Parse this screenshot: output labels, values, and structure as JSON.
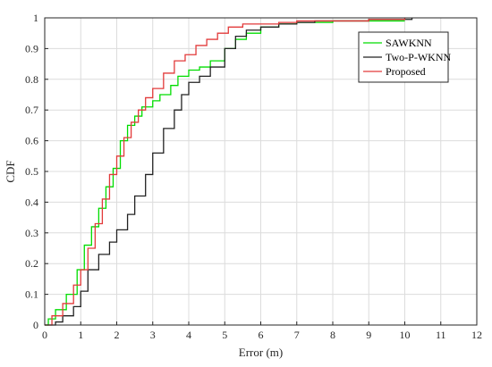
{
  "chart_data": {
    "type": "line",
    "xlabel": "Error (m)",
    "ylabel": "CDF",
    "xlim": [
      0,
      12
    ],
    "ylim": [
      0,
      1
    ],
    "xticks": [
      0,
      1,
      2,
      3,
      4,
      5,
      6,
      7,
      8,
      9,
      10,
      11,
      12
    ],
    "yticks": [
      0,
      0.1,
      0.2,
      0.3,
      0.4,
      0.5,
      0.6,
      0.7,
      0.8,
      0.9,
      1
    ],
    "grid": true,
    "legend_position": "top-right",
    "series": [
      {
        "name": "SAWKNN",
        "color": "#00dd00",
        "x": [
          0,
          0.1,
          0.3,
          0.6,
          0.9,
          1.1,
          1.3,
          1.5,
          1.7,
          1.9,
          2.1,
          2.3,
          2.5,
          2.7,
          3.0,
          3.2,
          3.5,
          3.7,
          4.0,
          4.3,
          4.6,
          5.0,
          5.3,
          5.6,
          6.0,
          6.5,
          7.0,
          8.0,
          9.0,
          10.0
        ],
        "y": [
          0,
          0.02,
          0.05,
          0.1,
          0.18,
          0.26,
          0.32,
          0.38,
          0.45,
          0.51,
          0.6,
          0.65,
          0.68,
          0.71,
          0.73,
          0.75,
          0.78,
          0.81,
          0.83,
          0.84,
          0.86,
          0.9,
          0.93,
          0.95,
          0.97,
          0.98,
          0.985,
          0.99,
          0.99,
          0.99
        ]
      },
      {
        "name": "Two-P-WKNN",
        "color": "#222222",
        "x": [
          0,
          0.15,
          0.3,
          0.5,
          0.8,
          1.0,
          1.2,
          1.5,
          1.8,
          2.0,
          2.3,
          2.5,
          2.8,
          3.0,
          3.3,
          3.6,
          3.8,
          4.0,
          4.3,
          4.6,
          5.0,
          5.3,
          5.6,
          6.0,
          6.5,
          7.0,
          7.5,
          8.0,
          9.0,
          10.0,
          10.2
        ],
        "y": [
          0,
          0,
          0.01,
          0.03,
          0.06,
          0.11,
          0.18,
          0.23,
          0.27,
          0.31,
          0.36,
          0.42,
          0.49,
          0.56,
          0.64,
          0.7,
          0.75,
          0.79,
          0.81,
          0.84,
          0.9,
          0.94,
          0.96,
          0.97,
          0.98,
          0.985,
          0.99,
          0.99,
          0.995,
          0.995,
          1.0
        ]
      },
      {
        "name": "Proposed",
        "color": "#e23a3a",
        "x": [
          0,
          0.2,
          0.5,
          0.8,
          1.0,
          1.2,
          1.4,
          1.6,
          1.8,
          2.0,
          2.2,
          2.4,
          2.6,
          2.8,
          3.0,
          3.3,
          3.6,
          3.9,
          4.2,
          4.5,
          4.8,
          5.1,
          5.5,
          6.0,
          6.5,
          7.0,
          8.0,
          9.0,
          10.0
        ],
        "y": [
          0,
          0.03,
          0.07,
          0.13,
          0.18,
          0.25,
          0.33,
          0.41,
          0.49,
          0.55,
          0.61,
          0.66,
          0.7,
          0.74,
          0.77,
          0.82,
          0.86,
          0.88,
          0.91,
          0.93,
          0.95,
          0.97,
          0.98,
          0.98,
          0.985,
          0.99,
          0.99,
          0.995,
          1.0
        ]
      }
    ]
  }
}
